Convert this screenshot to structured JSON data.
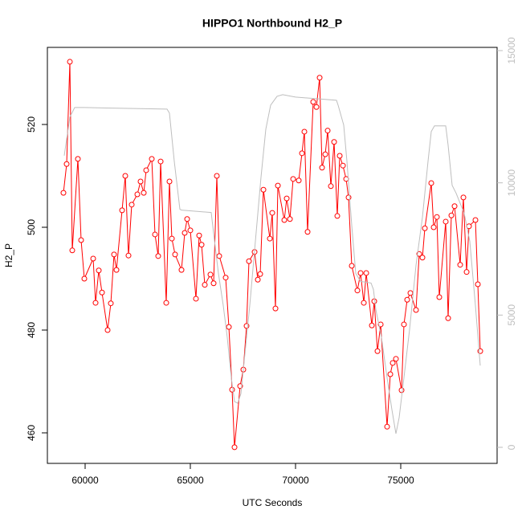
{
  "chart_data": {
    "type": "line",
    "title": "HIPPO1 Northbound H2_P",
    "x_label": "UTC Seconds",
    "y_label": "H2_P",
    "xlim": [
      58206,
      79580
    ],
    "ylim": [
      454.06,
      535
    ],
    "y2lim": [
      -607,
      15121
    ],
    "xticks": [
      60000,
      65000,
      70000,
      75000
    ],
    "yticks": [
      460,
      480,
      500,
      520
    ],
    "y2ticks": [
      0,
      5000,
      10000,
      15000
    ],
    "series": [
      {
        "color": "#ff0000",
        "markers": true,
        "x": [
          58969,
          59122,
          59275,
          59389,
          59656,
          59809,
          59962,
          60382,
          60496,
          60649,
          60802,
          61069,
          61221,
          61374,
          61489,
          61756,
          61908,
          62061,
          62214,
          62481,
          62634,
          62786,
          62901,
          63168,
          63321,
          63473,
          63588,
          63855,
          64008,
          64122,
          64275,
          64580,
          64733,
          64848,
          65000,
          65267,
          65420,
          65535,
          65687,
          65955,
          66107,
          66260,
          66374,
          66680,
          66832,
          66985,
          67100,
          67367,
          67519,
          67672,
          67787,
          68054,
          68207,
          68321,
          68474,
          68779,
          68894,
          69046,
          69161,
          69466,
          69581,
          69734,
          69886,
          70153,
          70306,
          70420,
          70573,
          70840,
          70993,
          71146,
          71260,
          71413,
          71527,
          71680,
          71833,
          71985,
          72100,
          72253,
          72405,
          72520,
          72672,
          72940,
          73092,
          73245,
          73360,
          73627,
          73741,
          73894,
          74047,
          74352,
          74505,
          74619,
          74772,
          75039,
          75153,
          75306,
          75459,
          75726,
          75879,
          76031,
          76146,
          76451,
          76566,
          76718,
          76833,
          77138,
          77253,
          77406,
          77558,
          77825,
          77978,
          78131,
          78245,
          78550,
          78665,
          78780
        ],
        "values": [
          506.7,
          512.3,
          532.2,
          495.5,
          513.3,
          497.5,
          490,
          493.9,
          485.3,
          491.6,
          487.3,
          480,
          485.2,
          494.7,
          491.7,
          503.3,
          510,
          494.5,
          504.4,
          506.4,
          508.9,
          506.7,
          511.1,
          513.3,
          498.6,
          494.4,
          512.8,
          485.3,
          508.9,
          497.8,
          494.7,
          491.7,
          498.9,
          501.6,
          499.4,
          486.1,
          498.4,
          496.6,
          488.8,
          490.8,
          489.1,
          510,
          494.4,
          490.2,
          480.6,
          468.4,
          457.2,
          469.1,
          472.3,
          480.8,
          493.4,
          495.2,
          489.8,
          490.9,
          507.3,
          497.8,
          502.8,
          484.2,
          508.1,
          501.4,
          505.6,
          501.6,
          509.4,
          509.1,
          514.4,
          518.6,
          499.1,
          524.4,
          523.4,
          529.1,
          511.6,
          514.2,
          518.8,
          508,
          516.6,
          502.2,
          513.9,
          512,
          509.4,
          505.8,
          492.5,
          487.7,
          491.1,
          485.3,
          491.1,
          480.9,
          485.6,
          475.9,
          481.1,
          461.2,
          471.4,
          473.6,
          474.4,
          468.3,
          481.1,
          485.9,
          487.2,
          483.9,
          494.8,
          494.1,
          499.8,
          508.6,
          500,
          502,
          486.4,
          501.1,
          482.3,
          502.3,
          504.1,
          492.7,
          505.8,
          491.3,
          500.2,
          501.4,
          488.9,
          475.9
        ]
      },
      {
        "color": "#bebebe",
        "axis": "y2",
        "markers": false,
        "x": [
          59008,
          59275,
          59504,
          59962,
          63893,
          64008,
          64237,
          64504,
          64580,
          65993,
          66107,
          66336,
          66565,
          66756,
          66947,
          67100,
          67252,
          67405,
          67596,
          67825,
          68092,
          68359,
          68588,
          68817,
          69123,
          69390,
          70000,
          71947,
          72024,
          72291,
          72443,
          72672,
          72863,
          73092,
          73588,
          73703,
          73818,
          74085,
          74352,
          74581,
          74772,
          74924,
          75153,
          75421,
          75726,
          76031,
          76299,
          76451,
          76604,
          77138,
          77253,
          77444,
          77635,
          78016,
          78283,
          78550,
          78780
        ],
        "values": [
          11029,
          12484,
          12847,
          12847,
          12787,
          12635,
          10817,
          9000,
          8970,
          8879,
          8090,
          6575,
          5363,
          4151,
          2636,
          1727,
          1667,
          2030,
          3545,
          5363,
          7787,
          10211,
          12029,
          12938,
          13272,
          13332,
          13241,
          13120,
          12938,
          12181,
          10817,
          8393,
          6575,
          6272,
          6211,
          5969,
          5212,
          4151,
          2636,
          1424,
          515,
          1121,
          2636,
          4454,
          6878,
          8696,
          10817,
          11938,
          12151,
          12151,
          11423,
          9908,
          9605,
          8848,
          7787,
          5363,
          3091
        ]
      }
    ]
  }
}
